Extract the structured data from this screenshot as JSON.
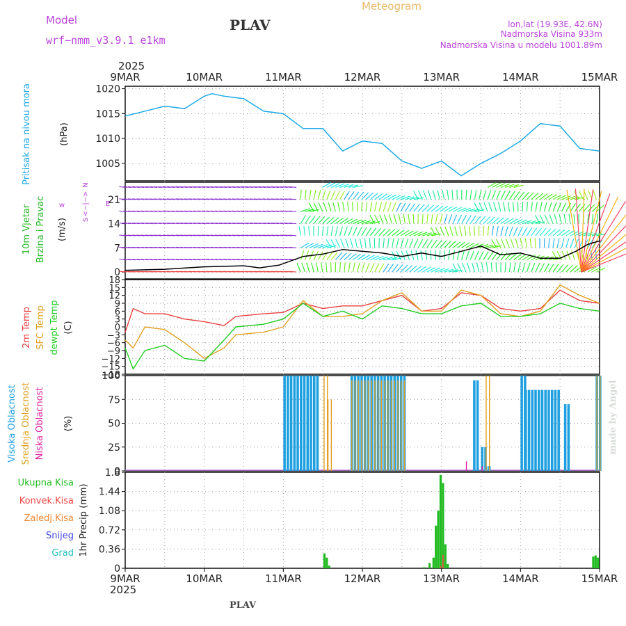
{
  "header": {
    "model_label": "Model",
    "model_name": "wrf−nmm_v3.9.1  e1km",
    "station": "PLAV",
    "product": "Meteogram",
    "lonlat": "lon,lat (19.93E, 42.6N)",
    "altitude": "Nadmorska Visina 933m",
    "model_altitude": "Nadmorska Visina u modelu 1001.89m",
    "credit": "made by Angel",
    "footer_station": "PLAV"
  },
  "time_axis": {
    "year": "2025",
    "ticks": [
      "9MAR",
      "10MAR",
      "11MAR",
      "12MAR",
      "13MAR",
      "14MAR",
      "15MAR"
    ]
  },
  "colors": {
    "pressure": "#1ea8e8",
    "temp": "#e84040",
    "sfc": "#e0a020",
    "dew": "#22cc22",
    "high_cloud": "#1e9fe0",
    "mid_cloud": "#e0a020",
    "low_cloud": "#e020a0",
    "total_precip": "#22bb22",
    "conv_precip": "#ee4444",
    "frozen_precip": "#ee8833",
    "snow": "#4444dd",
    "hail": "#22c0c0",
    "wind_label": "#22bb22",
    "compass": "#bb44dd",
    "meta": "#bb44dd",
    "product": "#e8b868"
  },
  "panels": {
    "pressure": {
      "label": "Pritisak na nivou mora",
      "unit": "(hPa)",
      "ticks": [
        "1005",
        "1010",
        "1015",
        "1020"
      ]
    },
    "wind": {
      "label1": "10m Vjetar",
      "label2": "Brzina i Pravac",
      "unit": "(m/s)",
      "ticks": [
        "0",
        "7",
        "14",
        "21"
      ],
      "compass": [
        "N",
        "w",
        "<−|−>",
        "E",
        "S"
      ]
    },
    "temp": {
      "label1": "2m Temp",
      "label2": "SFC Temp",
      "label3": "dewpt Temp",
      "unit": "(C)",
      "ticks": [
        "18",
        "15",
        "12",
        "9",
        "6",
        "3",
        "0",
        "−3",
        "−6",
        "−9",
        "−12",
        "−15",
        "−18"
      ]
    },
    "cloud": {
      "label1": "Visoka Oblacnost",
      "label2": "Srednja Oblacnost",
      "label3": "Niska Oblacnost",
      "unit": "(%)",
      "ticks": [
        "0",
        "25",
        "50",
        "75",
        "100"
      ]
    },
    "precip": {
      "legend": [
        "Ukupna Kisa",
        "Konvek.Kisa",
        "Zaledj.Kisa",
        "Snijeg",
        "Grad"
      ],
      "ylabel": "1hr Precip (mm)",
      "ticks": [
        "0",
        "0.36",
        "0.72",
        "1.08",
        "1.44",
        "1.8"
      ]
    }
  },
  "chart_data": [
    {
      "type": "line",
      "xlabel": "",
      "ylabel": "(hPa)",
      "ylim": [
        1001.5,
        1020.5
      ],
      "grid": true,
      "x_days": [
        0,
        0.25,
        0.5,
        0.75,
        1,
        1.1,
        1.25,
        1.5,
        1.75,
        2,
        2.25,
        2.5,
        2.75,
        3,
        3.25,
        3.5,
        3.75,
        4,
        4.25,
        4.5,
        4.75,
        5,
        5.25,
        5.5,
        5.75,
        6
      ],
      "series": [
        {
          "name": "Pritisak na nivou mora",
          "values": [
            1014.5,
            1015.5,
            1016.5,
            1016,
            1018.5,
            1019,
            1018.5,
            1018,
            1015.5,
            1015,
            1012,
            1012,
            1007.5,
            1009.5,
            1009,
            1005.5,
            1004,
            1005.5,
            1002.5,
            1005,
            1007,
            1009.5,
            1013,
            1012.5,
            1008,
            1007.5
          ]
        }
      ]
    },
    {
      "type": "line",
      "xlabel": "",
      "ylabel": "(m/s)",
      "ylim": [
        -2,
        26
      ],
      "grid": true,
      "x_days": [
        0,
        0.5,
        1,
        1.5,
        1.7,
        1.95,
        2.25,
        2.5,
        2.75,
        3,
        3.25,
        3.5,
        3.75,
        4,
        4.25,
        4.5,
        4.75,
        5,
        5.25,
        5.5,
        5.7,
        5.85,
        6
      ],
      "series": [
        {
          "name": "Brzina",
          "values": [
            0.5,
            0.8,
            1.5,
            1.8,
            1.2,
            2,
            4.5,
            5.2,
            6.5,
            6,
            5.5,
            4.5,
            5.5,
            4.5,
            6,
            7.5,
            5,
            5.5,
            4,
            4,
            6,
            8,
            9
          ]
        }
      ]
    },
    {
      "type": "line",
      "xlabel": "",
      "ylabel": "(C)",
      "ylim": [
        -18,
        18
      ],
      "grid": true,
      "x_days": [
        0,
        0.1,
        0.25,
        0.5,
        0.75,
        1,
        1.25,
        1.4,
        1.75,
        2,
        2.25,
        2.5,
        2.75,
        3,
        3.25,
        3.5,
        3.75,
        4,
        4.25,
        4.5,
        4.75,
        5,
        5.25,
        5.5,
        5.75,
        6
      ],
      "series": [
        {
          "name": "2m Temp",
          "values": [
            -2,
            7,
            5,
            5,
            3,
            2,
            0.5,
            4,
            5,
            5.5,
            9,
            7,
            8,
            8,
            10,
            12,
            6,
            7,
            13,
            12,
            7,
            6,
            7,
            14,
            10,
            9
          ]
        },
        {
          "name": "SFC Temp",
          "values": [
            -5,
            -8,
            0,
            -1,
            -6,
            -12,
            -8,
            -3,
            -2,
            0,
            10,
            4,
            4,
            5,
            10,
            13,
            6,
            6,
            14,
            12,
            5,
            4,
            6,
            16,
            12,
            9
          ]
        },
        {
          "name": "dewpt Temp",
          "values": [
            -8,
            -16,
            -9,
            -7,
            -12,
            -13,
            -5,
            0,
            1,
            3,
            9,
            4,
            6,
            3,
            8,
            7,
            5,
            5,
            8,
            9,
            4,
            4,
            5,
            9,
            7,
            6
          ]
        }
      ]
    },
    {
      "type": "bar",
      "xlabel": "",
      "ylabel": "(%)",
      "ylim": [
        0,
        100
      ],
      "series": [
        {
          "name": "Visoka Oblacnost",
          "segments": [
            [
              2.0,
              2.45,
              100
            ],
            [
              2.85,
              3.55,
              100
            ],
            [
              4.4,
              4.45,
              95
            ],
            [
              4.5,
              4.55,
              25
            ],
            [
              4.55,
              4.6,
              5
            ],
            [
              5.0,
              5.05,
              100
            ],
            [
              5.05,
              5.5,
              85
            ],
            [
              5.55,
              5.6,
              70
            ],
            [
              5.95,
              6.0,
              100
            ]
          ]
        },
        {
          "name": "Srednja Oblacnost",
          "segments": [
            [
              2.5,
              2.55,
              100
            ],
            [
              2.55,
              2.6,
              75
            ],
            [
              2.85,
              3.55,
              95
            ],
            [
              4.55,
              4.6,
              100
            ],
            [
              5.95,
              6.0,
              100
            ]
          ]
        },
        {
          "name": "Niska Oblacnost",
          "segments": [
            [
              4.3,
              4.32,
              10
            ],
            [
              4.5,
              4.52,
              5
            ]
          ]
        }
      ]
    },
    {
      "type": "bar",
      "xlabel": "",
      "ylabel": "1hr Precip (mm)",
      "ylim": [
        0,
        1.8
      ],
      "series": [
        {
          "name": "Ukupna Kisa",
          "x_days": [
            2.52,
            2.55,
            2.58,
            3.78,
            3.85,
            3.9,
            3.93,
            3.96,
            3.99,
            4.02,
            4.05,
            4.08,
            5.92,
            5.95,
            5.98
          ],
          "values": [
            0.28,
            0.2,
            0.05,
            0.02,
            0.1,
            0.2,
            0.8,
            1.08,
            1.75,
            1.6,
            0.45,
            0.08,
            0.22,
            0.24,
            0.2
          ]
        },
        {
          "name": "Konvek.Kisa",
          "x_days": [
            3.99,
            4.02
          ],
          "values": [
            0.05,
            0.25
          ]
        }
      ]
    }
  ]
}
